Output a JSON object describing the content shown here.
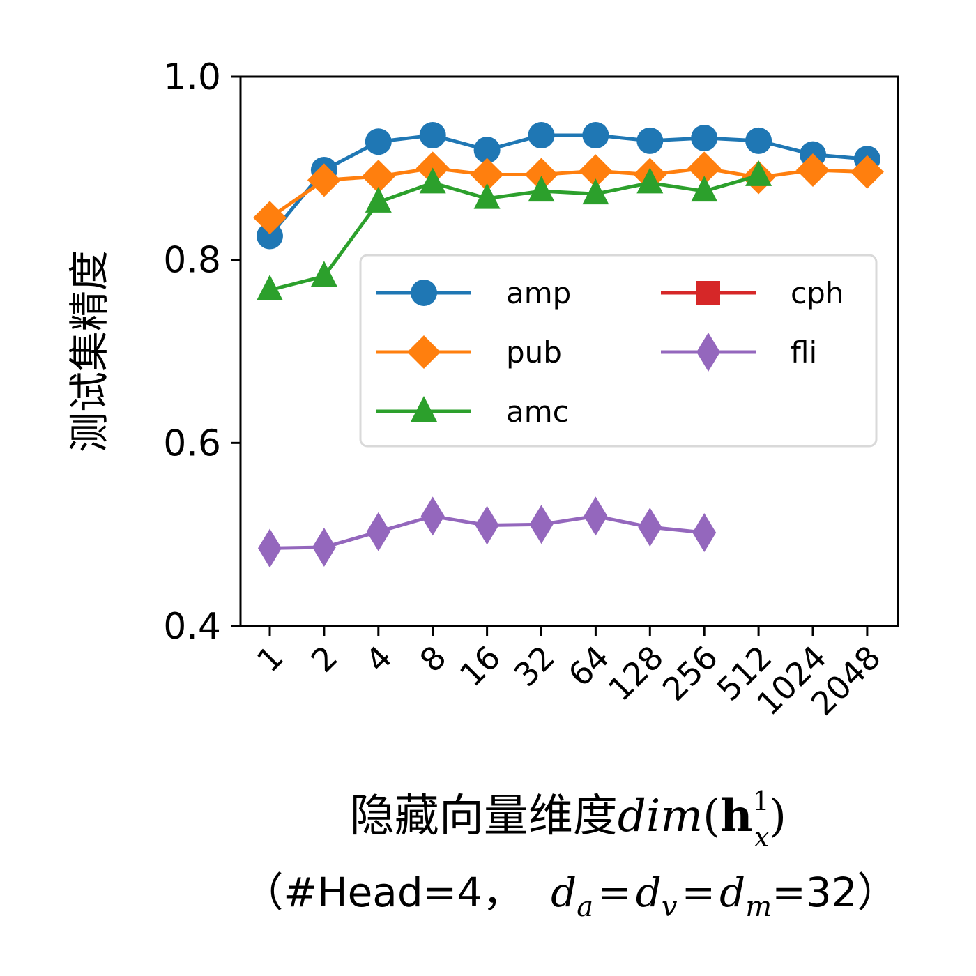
{
  "chart_data": {
    "type": "line",
    "ylabel": "测试集精度",
    "xlabel": {
      "line1_prefix": "隐藏向量维度",
      "line1_func": "dim",
      "line1_arg": "h",
      "line1_sup": "1",
      "line1_sub": "x",
      "line2_prefix": "（#Head=4，",
      "line2_math_d": "d",
      "line2_sub_a": "a",
      "line2_sub_v": "v",
      "line2_sub_m": "m",
      "line2_eq": "=",
      "line2_suffix": "=32）"
    },
    "categories": [
      "1",
      "2",
      "4",
      "8",
      "16",
      "32",
      "64",
      "128",
      "256",
      "512",
      "1024",
      "2048"
    ],
    "ylim": [
      0.4,
      1.0
    ],
    "yticks": [
      "0.4",
      "0.6",
      "0.8",
      "1.0"
    ],
    "grid": false,
    "legend": {
      "placement": "center-right",
      "columns": 2
    },
    "series": [
      {
        "name": "amp",
        "color": "#1f77b4",
        "marker": "circle",
        "values": [
          0.826,
          0.898,
          0.929,
          0.936,
          0.92,
          0.936,
          0.936,
          0.93,
          0.933,
          0.93,
          0.915,
          0.91
        ]
      },
      {
        "name": "pub",
        "color": "#ff7f0e",
        "marker": "diamond",
        "values": [
          0.846,
          0.887,
          0.891,
          0.9,
          0.893,
          0.893,
          0.897,
          0.893,
          0.9,
          0.89,
          0.898,
          0.896
        ]
      },
      {
        "name": "amc",
        "color": "#2ca02c",
        "marker": "triangle",
        "values": [
          0.767,
          0.782,
          0.863,
          0.884,
          0.867,
          0.875,
          0.872,
          0.884,
          0.875,
          0.892,
          null,
          null
        ]
      },
      {
        "name": "cph",
        "color": "#d62728",
        "marker": "square",
        "values": [
          null,
          null,
          null,
          null,
          null,
          null,
          null,
          null,
          null,
          null,
          null,
          null
        ]
      },
      {
        "name": "fli",
        "color": "#9467bd",
        "marker": "thin_diamond",
        "values": [
          0.485,
          0.486,
          0.503,
          0.52,
          0.51,
          0.511,
          0.52,
          0.508,
          0.502,
          null,
          null,
          null
        ]
      }
    ]
  }
}
